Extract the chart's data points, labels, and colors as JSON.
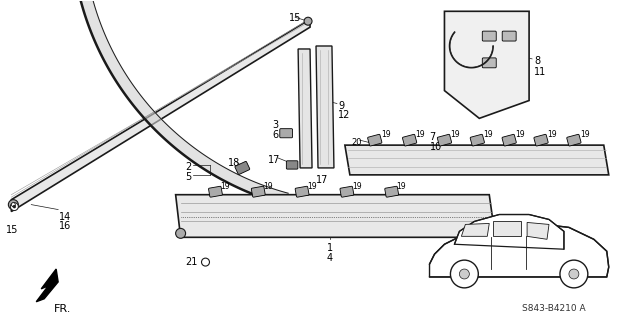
{
  "background_color": "#ffffff",
  "line_color": "#1a1a1a",
  "fig_width": 6.4,
  "fig_height": 3.19,
  "dpi": 100,
  "diagram_code": "S843-B4210 A"
}
